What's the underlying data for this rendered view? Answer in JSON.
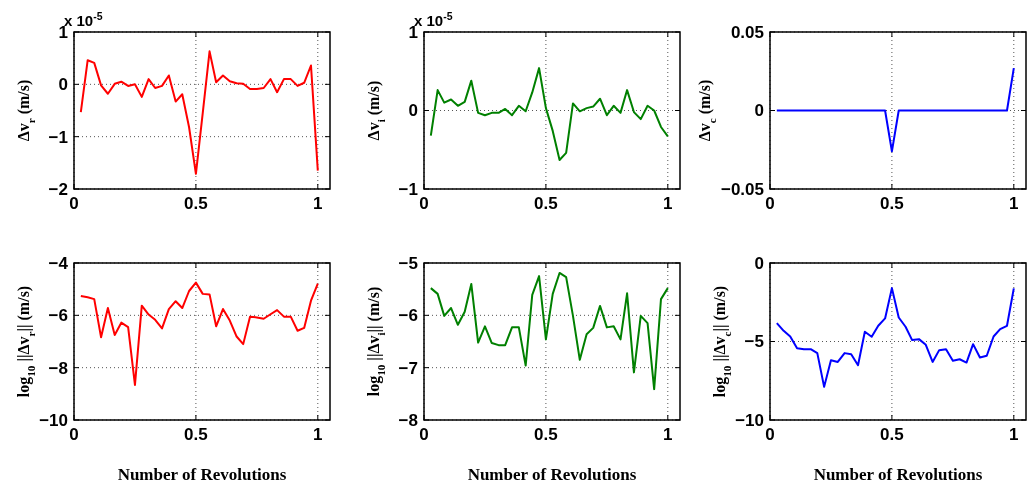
{
  "chart_data": [
    {
      "type": "line",
      "ylabel": "Δv$_{r}$ (m/s)",
      "annotations": [
        "x 10$^{-5}$"
      ],
      "x": [
        0.028,
        0.056,
        0.083,
        0.111,
        0.139,
        0.167,
        0.194,
        0.222,
        0.25,
        0.278,
        0.306,
        0.333,
        0.361,
        0.389,
        0.417,
        0.444,
        0.472,
        0.5,
        0.528,
        0.556,
        0.583,
        0.611,
        0.639,
        0.667,
        0.694,
        0.722,
        0.75,
        0.778,
        0.806,
        0.833,
        0.861,
        0.889,
        0.917,
        0.944,
        0.972,
        1
      ],
      "series": [
        {
          "color": "#ff0000",
          "values": [
            -0.53,
            0.46,
            0.41,
            -0.02,
            -0.18,
            0.01,
            0.05,
            -0.03,
            0.0,
            -0.24,
            0.1,
            -0.07,
            -0.03,
            0.17,
            -0.33,
            -0.19,
            -0.82,
            -1.71,
            -0.55,
            0.63,
            0.04,
            0.17,
            0.06,
            0.02,
            0.01,
            -0.09,
            -0.09,
            -0.07,
            0.1,
            -0.15,
            0.1,
            0.1,
            -0.03,
            0.03,
            0.36,
            -1.65
          ]
        }
      ],
      "xlim": [
        0,
        1.05
      ],
      "xticks": [
        0,
        0.5,
        1
      ],
      "ylim": [
        -2,
        1
      ],
      "yticks": [
        -2,
        -1,
        0,
        1
      ],
      "grid": true
    },
    {
      "type": "line",
      "ylabel": "Δv$_{i}$ (m/s)",
      "annotations": [
        "x 10$^{-5}$"
      ],
      "x": [
        0.028,
        0.056,
        0.083,
        0.111,
        0.139,
        0.167,
        0.194,
        0.222,
        0.25,
        0.278,
        0.306,
        0.333,
        0.361,
        0.389,
        0.417,
        0.444,
        0.472,
        0.5,
        0.528,
        0.556,
        0.583,
        0.611,
        0.639,
        0.667,
        0.694,
        0.722,
        0.75,
        0.778,
        0.806,
        0.833,
        0.861,
        0.889,
        0.917,
        0.944,
        0.972,
        1
      ],
      "series": [
        {
          "color": "#008000",
          "values": [
            -0.32,
            0.26,
            0.1,
            0.14,
            0.06,
            0.11,
            0.38,
            -0.03,
            -0.06,
            -0.03,
            -0.03,
            0.02,
            -0.06,
            0.06,
            -0.01,
            0.23,
            0.54,
            0.03,
            -0.26,
            -0.63,
            -0.54,
            0.09,
            -0.01,
            0.03,
            0.05,
            0.15,
            -0.06,
            0.06,
            -0.03,
            0.26,
            -0.02,
            -0.11,
            0.06,
            0.0,
            -0.21,
            -0.33
          ]
        }
      ],
      "xlim": [
        0,
        1.05
      ],
      "xticks": [
        0,
        0.5,
        1
      ],
      "ylim": [
        -1,
        1
      ],
      "yticks": [
        -1,
        0,
        1
      ],
      "grid": true
    },
    {
      "type": "line",
      "ylabel": "Δv$_{c}$ (m/s)",
      "x": [
        0.028,
        0.056,
        0.083,
        0.111,
        0.139,
        0.167,
        0.194,
        0.222,
        0.25,
        0.278,
        0.306,
        0.333,
        0.361,
        0.389,
        0.417,
        0.444,
        0.472,
        0.5,
        0.528,
        0.556,
        0.583,
        0.611,
        0.639,
        0.667,
        0.694,
        0.722,
        0.75,
        0.778,
        0.806,
        0.833,
        0.861,
        0.889,
        0.917,
        0.944,
        0.972,
        1
      ],
      "series": [
        {
          "color": "#0000ff",
          "values": [
            0,
            0,
            0,
            0,
            0,
            0,
            0,
            0,
            0,
            0,
            0,
            0,
            0,
            0,
            0,
            0,
            0,
            -0.026,
            0,
            0,
            0,
            0,
            0,
            0,
            0,
            0,
            0,
            0,
            0,
            0,
            0,
            0,
            0,
            0,
            0,
            0.027
          ]
        }
      ],
      "xlim": [
        0,
        1.05
      ],
      "xticks": [
        0,
        0.5,
        1
      ],
      "ylim": [
        -0.05,
        0.05
      ],
      "yticks": [
        -0.05,
        0,
        0.05
      ],
      "grid": true
    },
    {
      "type": "line",
      "xlabel": "Number of Revolutions",
      "ylabel": "log$_{10}$ ||Δv$_{r}$|| (m/s)",
      "x": [
        0.028,
        0.056,
        0.083,
        0.111,
        0.139,
        0.167,
        0.194,
        0.222,
        0.25,
        0.278,
        0.306,
        0.333,
        0.361,
        0.389,
        0.417,
        0.444,
        0.472,
        0.5,
        0.528,
        0.556,
        0.583,
        0.611,
        0.639,
        0.667,
        0.694,
        0.722,
        0.75,
        0.778,
        0.806,
        0.833,
        0.861,
        0.889,
        0.917,
        0.944,
        0.972,
        1
      ],
      "series": [
        {
          "color": "#ff0000",
          "values": [
            -5.26,
            -5.31,
            -5.38,
            -6.84,
            -5.72,
            -6.75,
            -6.28,
            -6.45,
            -8.66,
            -5.63,
            -5.97,
            -6.17,
            -6.5,
            -5.76,
            -5.46,
            -5.72,
            -5.07,
            -4.75,
            -5.18,
            -5.2,
            -6.42,
            -5.76,
            -6.2,
            -6.81,
            -7.1,
            -6.05,
            -6.08,
            -6.13,
            -5.96,
            -5.8,
            -6.05,
            -6.05,
            -6.59,
            -6.48,
            -5.44,
            -4.79
          ]
        }
      ],
      "xlim": [
        0,
        1.05
      ],
      "xticks": [
        0,
        0.5,
        1
      ],
      "ylim": [
        -10,
        -4
      ],
      "yticks": [
        -10,
        -8,
        -6,
        -4
      ],
      "grid": true
    },
    {
      "type": "line",
      "xlabel": "Number of Revolutions",
      "ylabel": "log$_{10}$ ||Δv$_{i}$|| (m/s)",
      "x": [
        0.028,
        0.056,
        0.083,
        0.111,
        0.139,
        0.167,
        0.194,
        0.222,
        0.25,
        0.278,
        0.306,
        0.333,
        0.361,
        0.389,
        0.417,
        0.444,
        0.472,
        0.5,
        0.528,
        0.556,
        0.583,
        0.611,
        0.639,
        0.667,
        0.694,
        0.722,
        0.75,
        0.778,
        0.806,
        0.833,
        0.861,
        0.889,
        0.917,
        0.944,
        0.972,
        1
      ],
      "series": [
        {
          "color": "#008000",
          "values": [
            -5.48,
            -5.59,
            -6.01,
            -5.86,
            -6.18,
            -5.93,
            -5.4,
            -6.52,
            -6.21,
            -6.53,
            -6.57,
            -6.57,
            -6.23,
            -6.23,
            -6.96,
            -5.61,
            -5.25,
            -6.46,
            -5.59,
            -5.19,
            -5.27,
            -6.01,
            -6.85,
            -6.36,
            -6.24,
            -5.82,
            -6.23,
            -6.21,
            -6.46,
            -5.58,
            -7.09,
            -6.01,
            -6.15,
            -7.41,
            -5.69,
            -5.48
          ]
        }
      ],
      "xlim": [
        0,
        1.05
      ],
      "xticks": [
        0,
        0.5,
        1
      ],
      "ylim": [
        -8,
        -5
      ],
      "yticks": [
        -8,
        -7,
        -6,
        -5
      ],
      "grid": true
    },
    {
      "type": "line",
      "xlabel": "Number of Revolutions",
      "ylabel": "log$_{10}$ ||Δv$_{c}$|| (m/s)",
      "x": [
        0.028,
        0.056,
        0.083,
        0.111,
        0.139,
        0.167,
        0.194,
        0.222,
        0.25,
        0.278,
        0.306,
        0.333,
        0.361,
        0.389,
        0.417,
        0.444,
        0.472,
        0.5,
        0.528,
        0.556,
        0.583,
        0.611,
        0.639,
        0.667,
        0.694,
        0.722,
        0.75,
        0.778,
        0.806,
        0.833,
        0.861,
        0.889,
        0.917,
        0.944,
        0.972,
        1
      ],
      "series": [
        {
          "color": "#0000ff",
          "values": [
            -3.83,
            -4.32,
            -4.68,
            -5.43,
            -5.49,
            -5.49,
            -5.74,
            -7.89,
            -6.19,
            -6.3,
            -5.74,
            -5.81,
            -6.51,
            -4.38,
            -4.7,
            -4.0,
            -3.53,
            -1.6,
            -3.47,
            -4.06,
            -4.91,
            -4.85,
            -5.21,
            -6.3,
            -5.55,
            -5.49,
            -6.23,
            -6.13,
            -6.34,
            -5.17,
            -6.02,
            -5.91,
            -4.68,
            -4.21,
            -4.0,
            -1.62
          ]
        }
      ],
      "xlim": [
        0,
        1.05
      ],
      "xticks": [
        0,
        0.5,
        1
      ],
      "ylim": [
        -10,
        0
      ],
      "yticks": [
        -10,
        -5,
        0
      ],
      "grid": true
    }
  ]
}
